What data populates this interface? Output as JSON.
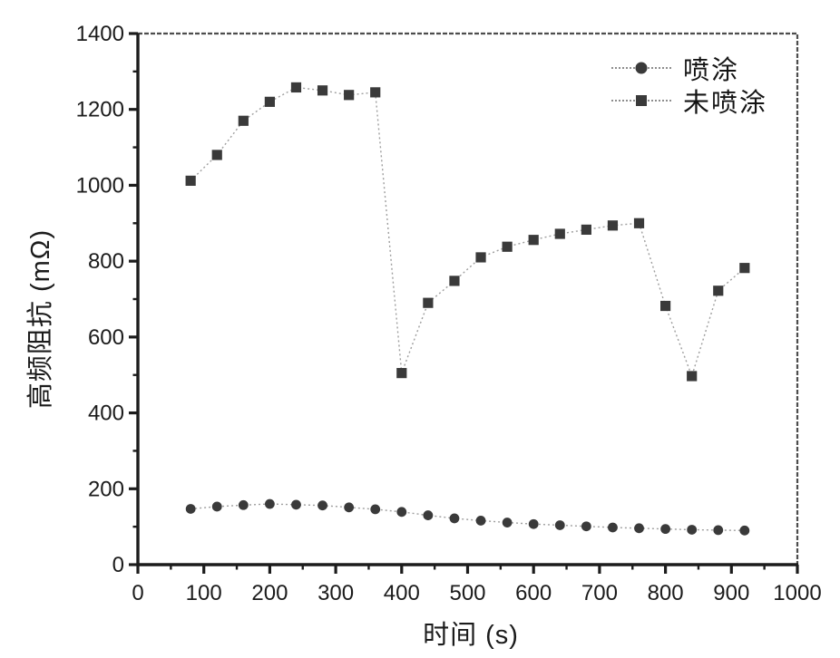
{
  "figure": {
    "background": "#ffffff",
    "ink_color": "#1c1c1c",
    "frame_color": "#4d4d4d",
    "marker_color": "#3a3a3a",
    "connector_color": "#9e9e9e"
  },
  "chart_data": {
    "type": "line",
    "title": "",
    "xlabel": "时间 (s)",
    "ylabel": "高频阻抗 (mΩ)",
    "xlim": [
      0,
      1000
    ],
    "ylim": [
      0,
      1400
    ],
    "x_major_step": 100,
    "x_minor_step": 50,
    "y_major_step": 200,
    "y_minor_step": 100,
    "grid": false,
    "legend_position": "top-right-inside",
    "line_style": "dotted",
    "x": [
      80,
      120,
      160,
      200,
      240,
      280,
      320,
      360,
      400,
      440,
      480,
      520,
      560,
      600,
      640,
      680,
      720,
      760,
      800,
      840,
      880,
      920
    ],
    "series": [
      {
        "name": "喷涂",
        "marker": "circle",
        "values": [
          147,
          153,
          157,
          160,
          158,
          156,
          151,
          146,
          139,
          130,
          122,
          116,
          111,
          107,
          104,
          101,
          98,
          96,
          94,
          92,
          91,
          90
        ]
      },
      {
        "name": "未喷涂",
        "marker": "square",
        "values": [
          1012,
          1080,
          1170,
          1220,
          1258,
          1250,
          1238,
          1245,
          505,
          690,
          748,
          810,
          838,
          856,
          872,
          883,
          894,
          900,
          682,
          497,
          722,
          782
        ]
      }
    ]
  }
}
